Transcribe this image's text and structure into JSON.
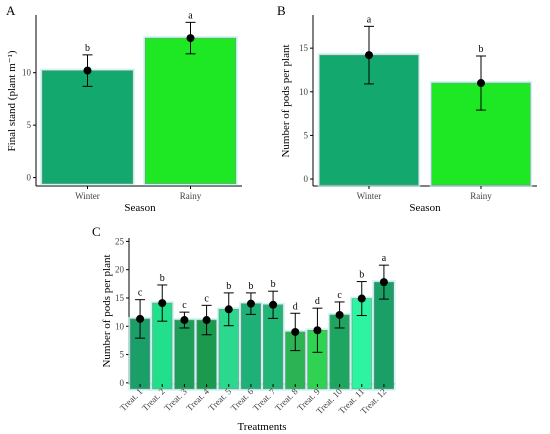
{
  "panels": [
    {
      "letter": "A",
      "title": "",
      "xlabel": "Season",
      "ylabel": "Final stand (plant m⁻¹)"
    },
    {
      "letter": "B",
      "title": "",
      "xlabel": "Season",
      "ylabel": "Number of pods per plant"
    },
    {
      "letter": "C",
      "title": "",
      "xlabel": "Treatments",
      "ylabel": "Number of pods per plant"
    }
  ],
  "chart_data": [
    {
      "type": "bar",
      "panel": "A",
      "xlabel": "Season",
      "ylabel": "Final stand (plant m⁻¹)",
      "categories": [
        "Winter",
        "Rainy"
      ],
      "values": [
        10.2,
        13.3
      ],
      "errors": [
        1.5,
        1.5
      ],
      "letters": [
        "b",
        "a"
      ],
      "bar_colors": [
        "#13a86e",
        "#1ee823"
      ],
      "yticks": [
        0,
        5,
        10
      ],
      "ylim": [
        -0.8,
        15.5
      ],
      "grid": false
    },
    {
      "type": "bar",
      "panel": "B",
      "xlabel": "Season",
      "ylabel": "Number of pods per plant",
      "categories": [
        "Winter",
        "Rainy"
      ],
      "values": [
        14.2,
        11.0
      ],
      "errors": [
        3.3,
        3.1
      ],
      "letters": [
        "a",
        "b"
      ],
      "bar_colors": [
        "#13a86e",
        "#1ee823"
      ],
      "yticks": [
        0,
        5,
        10,
        15
      ],
      "ylim": [
        -0.8,
        18.8
      ],
      "grid": false
    },
    {
      "type": "bar",
      "panel": "C",
      "xlabel": "Treatments",
      "ylabel": "Number of pods per plant",
      "categories": [
        "Treat. 1",
        "Treat. 2",
        "Treat. 3",
        "Treat. 4",
        "Treat. 5",
        "Treat. 6",
        "Treat. 7",
        "Treat. 8",
        "Treat. 9",
        "Treat. 10",
        "Treat. 11",
        "Treat. 12"
      ],
      "values": [
        11.3,
        14.1,
        11.1,
        11.1,
        13.0,
        14.0,
        13.8,
        9.0,
        9.3,
        12.0,
        14.9,
        17.8
      ],
      "errors": [
        3.4,
        3.2,
        1.4,
        2.6,
        2.9,
        1.9,
        2.4,
        3.3,
        3.9,
        2.3,
        3.0,
        3.0
      ],
      "letters": [
        "c",
        "b",
        "c",
        "c",
        "b",
        "b",
        "b",
        "d",
        "d",
        "c",
        "b",
        "a"
      ],
      "bar_colors": [
        "#1a9f68",
        "#22df8c",
        "#1d9e58",
        "#1b9a4e",
        "#2bd88e",
        "#1fb078",
        "#22b676",
        "#2cb454",
        "#30d252",
        "#1ea560",
        "#2cf4a0",
        "#1a9f66"
      ],
      "yticks": [
        0,
        5,
        10,
        15,
        20,
        25
      ],
      "ylim": [
        -0.2,
        25.6
      ],
      "grid": false
    }
  ]
}
